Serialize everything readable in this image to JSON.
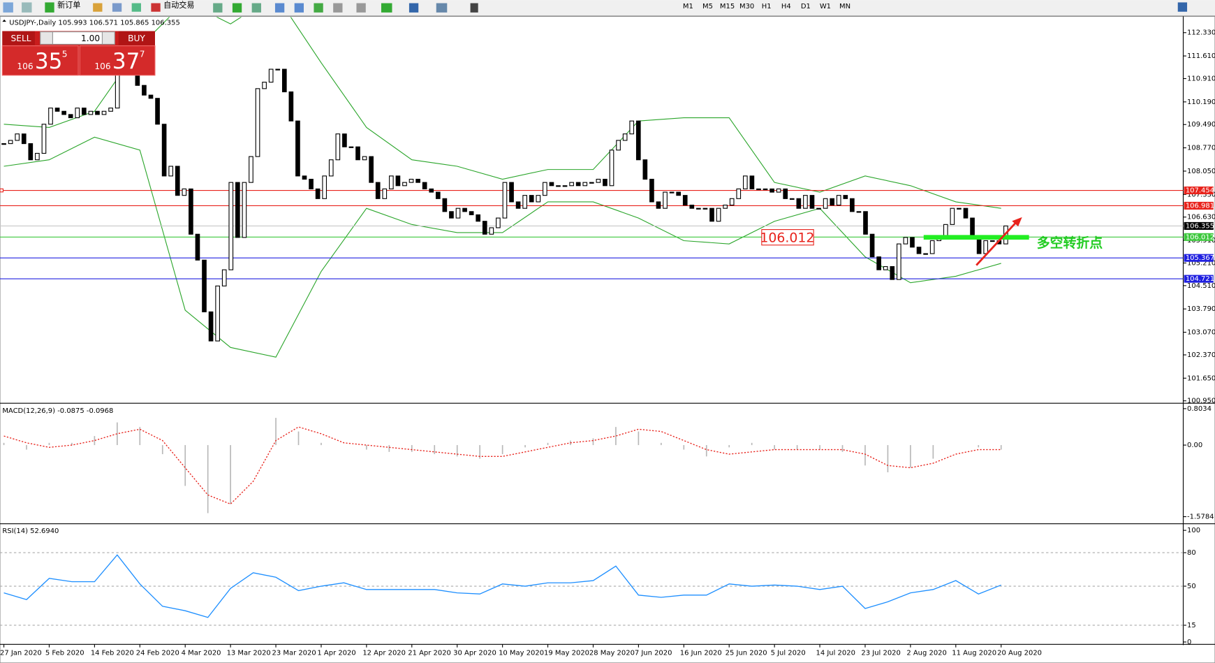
{
  "toolbar": {
    "new_order": "新订单",
    "auto_trading": "自动交易",
    "timeframes": [
      "M1",
      "M5",
      "M15",
      "M30",
      "H1",
      "H4",
      "D1",
      "W1",
      "MN"
    ]
  },
  "trade_panel": {
    "sell_label": "SELL",
    "buy_label": "BUY",
    "lot": "1.00",
    "sell_price": {
      "big": "106",
      "main": "35",
      "small": "5"
    },
    "buy_price": {
      "big": "106",
      "main": "37",
      "small": "7"
    }
  },
  "chart_data": {
    "type": "candlestick",
    "title": "USDJPY-,Daily  105.993 106.571 105.865 106.355",
    "up_color": "#ffffff",
    "down_color": "#000000",
    "closes": [
      108.9,
      109.0,
      109.2,
      108.9,
      108.4,
      108.6,
      109.5,
      110.0,
      109.9,
      109.8,
      109.7,
      110.0,
      109.8,
      109.9,
      109.8,
      109.9,
      110.0,
      111.6,
      112.1,
      111.6,
      110.7,
      110.4,
      110.3,
      109.5,
      107.9,
      108.2,
      107.3,
      107.5,
      106.1,
      105.3,
      103.7,
      102.8,
      104.5,
      105.0,
      107.7,
      106.0,
      107.7,
      108.5,
      110.6,
      110.8,
      111.2,
      111.2,
      110.5,
      109.6,
      107.9,
      107.8,
      107.5,
      107.2,
      107.9,
      108.4,
      109.2,
      108.8,
      108.8,
      108.4,
      108.5,
      107.7,
      107.2,
      107.5,
      107.9,
      107.6,
      107.7,
      107.8,
      107.7,
      107.5,
      107.4,
      107.2,
      106.8,
      106.6,
      106.9,
      106.8,
      106.7,
      106.5,
      106.1,
      106.3,
      106.6,
      107.7,
      107.1,
      106.9,
      107.3,
      107.1,
      107.3,
      107.7,
      107.6,
      107.6,
      107.6,
      107.7,
      107.6,
      107.7,
      107.7,
      107.8,
      107.6,
      108.7,
      109.0,
      109.2,
      109.6,
      108.4,
      107.8,
      107.1,
      106.9,
      107.4,
      107.4,
      107.3,
      107.0,
      106.9,
      106.9,
      106.9,
      106.5,
      106.9,
      107.0,
      107.2,
      107.5,
      107.9,
      107.5,
      107.5,
      107.5,
      107.4,
      107.5,
      107.2,
      107.2,
      106.9,
      107.3,
      106.9,
      106.9,
      107.2,
      107.0,
      107.3,
      107.2,
      106.8,
      106.8,
      106.1,
      105.4,
      105.0,
      105.1,
      104.7,
      105.8,
      106.0,
      105.7,
      105.5,
      105.5,
      105.9,
      106.0,
      106.4,
      106.9,
      106.9,
      106.6,
      106.0,
      105.5,
      105.9,
      105.9,
      105.8,
      106.355
    ],
    "x_labels": [
      "27 Jan 2020",
      "5 Feb 2020",
      "14 Feb 2020",
      "24 Feb 2020",
      "4 Mar 2020",
      "13 Mar 2020",
      "23 Mar 2020",
      "1 Apr 2020",
      "12 Apr 2020",
      "21 Apr 2020",
      "30 Apr 2020",
      "10 May 2020",
      "19 May 2020",
      "28 May 2020",
      "7 Jun 2020",
      "16 Jun 2020",
      "25 Jun 2020",
      "5 Jul 2020",
      "14 Jul 2020",
      "23 Jul 2020",
      "2 Aug 2020",
      "11 Aug 2020",
      "20 Aug 2020"
    ],
    "bollinger": {
      "color": "#2aa52a",
      "upper": [
        109.5,
        109.4,
        109.9,
        111.9,
        113.3,
        112.6,
        113.5,
        111.4,
        109.4,
        108.4,
        108.2,
        107.8,
        108.1,
        108.1,
        109.6,
        109.7,
        109.7,
        107.7,
        107.4,
        107.9,
        107.6,
        107.1,
        106.9
      ],
      "lower": [
        108.2,
        108.4,
        109.1,
        108.7,
        103.75,
        102.6,
        102.3,
        104.95,
        106.9,
        106.4,
        106.15,
        106.15,
        107.1,
        107.1,
        106.6,
        105.9,
        105.8,
        106.5,
        106.9,
        105.4,
        104.6,
        104.8,
        105.2
      ]
    },
    "ylim": [
      100.9,
      112.81
    ],
    "yticks": [
      {
        "value": 112.33,
        "label": "112.330"
      },
      {
        "value": 111.61,
        "label": "111.610"
      },
      {
        "value": 110.91,
        "label": "110.910"
      },
      {
        "value": 110.19,
        "label": "110.190"
      },
      {
        "value": 109.49,
        "label": "109.490"
      },
      {
        "value": 108.77,
        "label": "108.770"
      },
      {
        "value": 108.05,
        "label": "108.050"
      },
      {
        "value": 107.33,
        "label": "107.330"
      },
      {
        "value": 106.63,
        "label": "106.630"
      },
      {
        "value": 105.91,
        "label": "105.910"
      },
      {
        "value": 105.21,
        "label": "105.210"
      },
      {
        "value": 104.51,
        "label": "104.510"
      },
      {
        "value": 103.79,
        "label": "103.790"
      },
      {
        "value": 103.07,
        "label": "103.070"
      },
      {
        "value": 102.37,
        "label": "102.370"
      },
      {
        "value": 101.65,
        "label": "101.650"
      },
      {
        "value": 100.95,
        "label": "100.950"
      }
    ],
    "levels": [
      {
        "value": 107.454,
        "color": "#e8231c",
        "text_color": "#ffffff"
      },
      {
        "value": 106.981,
        "color": "#e8231c",
        "text_color": "#ffffff"
      },
      {
        "value": 106.355,
        "color": "#000000",
        "line_color": "#c8c8c8",
        "text_color": "#ffffff"
      },
      {
        "value": 106.012,
        "color": "#3cc83c",
        "text_color": "#ffffff"
      },
      {
        "value": 105.367,
        "color": "#2020e0",
        "text_color": "#ffffff"
      },
      {
        "value": 104.721,
        "color": "#2020e0",
        "text_color": "#ffffff"
      }
    ],
    "annotations": [
      {
        "text": "106.012"
      },
      {
        "text": "多空转折点"
      }
    ],
    "macd": {
      "title": "MACD(12,26,9) -0.0875 -0.0968",
      "hist_color": "#b8b8b8",
      "signal_color": "#e8231c",
      "histogram": [
        0.05,
        -0.1,
        0.05,
        0.05,
        0.2,
        0.5,
        0.4,
        -0.2,
        -0.9,
        -1.5,
        -1.3,
        0.0,
        0.6,
        0.3,
        0.05,
        0.0,
        -0.1,
        -0.15,
        -0.15,
        -0.2,
        -0.25,
        -0.3,
        -0.2,
        -0.05,
        0.05,
        0.1,
        0.15,
        0.4,
        0.3,
        0.05,
        -0.1,
        -0.25,
        -0.05,
        0.05,
        -0.1,
        -0.1,
        -0.1,
        -0.15,
        -0.45,
        -0.6,
        -0.5,
        -0.3,
        0.0,
        -0.05,
        -0.1
      ],
      "signal": [
        0.2,
        0.05,
        -0.05,
        0.0,
        0.1,
        0.25,
        0.35,
        0.1,
        -0.5,
        -1.1,
        -1.3,
        -0.8,
        0.1,
        0.4,
        0.25,
        0.05,
        0.0,
        -0.05,
        -0.1,
        -0.15,
        -0.2,
        -0.25,
        -0.25,
        -0.15,
        -0.05,
        0.05,
        0.1,
        0.2,
        0.35,
        0.3,
        0.1,
        -0.1,
        -0.2,
        -0.15,
        -0.1,
        -0.1,
        -0.1,
        -0.1,
        -0.2,
        -0.45,
        -0.5,
        -0.4,
        -0.2,
        -0.1,
        -0.1
      ],
      "ylim": [
        -1.709,
        0.889
      ],
      "yticks": [
        {
          "value": 0.8034,
          "label": "0.8034"
        },
        {
          "value": 0,
          "label": "0.00"
        },
        {
          "value": -1.5784,
          "label": "-1.5784"
        }
      ]
    },
    "rsi": {
      "title": "RSI(14) 52.6940",
      "color": "#1e8fff",
      "values": [
        44,
        38,
        57,
        54,
        54,
        78,
        52,
        32,
        28,
        22,
        48,
        62,
        58,
        46,
        50,
        53,
        47,
        47,
        47,
        47,
        44,
        43,
        52,
        50,
        53,
        53,
        55,
        68,
        42,
        40,
        42,
        42,
        52,
        50,
        51,
        50,
        47,
        50,
        30,
        36,
        44,
        47,
        55,
        43,
        51
      ],
      "ylim": [
        -1.39,
        104.86
      ],
      "yticks": [
        100,
        80,
        50,
        15,
        0
      ]
    }
  }
}
